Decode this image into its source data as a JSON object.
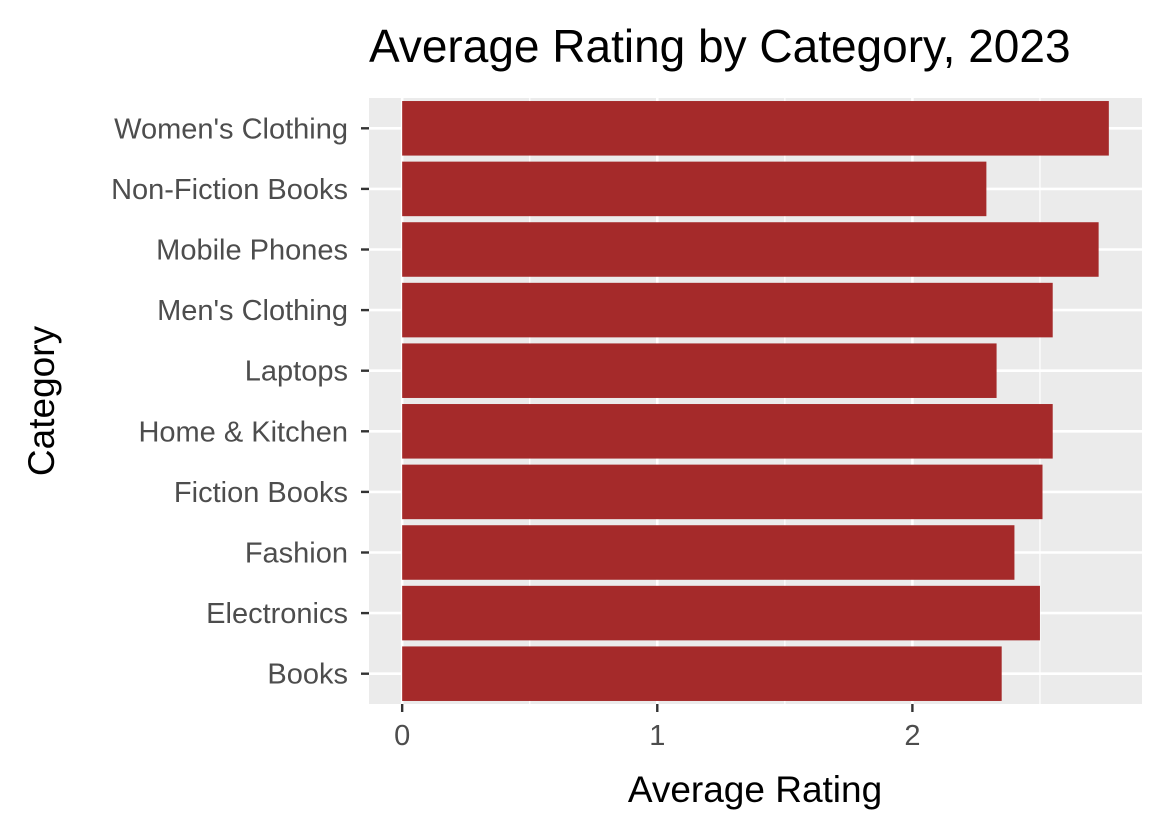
{
  "chart_data": {
    "type": "bar",
    "orientation": "horizontal",
    "title": "Average Rating by Category, 2023",
    "xlabel": "Average Rating",
    "ylabel": "Category",
    "categories": [
      "Books",
      "Electronics",
      "Fashion",
      "Fiction Books",
      "Home & Kitchen",
      "Laptops",
      "Men's Clothing",
      "Mobile Phones",
      "Non-Fiction Books",
      "Women's Clothing"
    ],
    "values": [
      2.35,
      2.5,
      2.4,
      2.51,
      2.55,
      2.33,
      2.55,
      2.73,
      2.29,
      2.77
    ],
    "xlim": [
      -0.13,
      2.9
    ],
    "xticks": [
      0,
      1,
      2
    ],
    "x_minor_gridlines": [
      0.5,
      1.5,
      2.5
    ],
    "grid": true,
    "bar_color": "#a52a2a",
    "panel_background": "#ebebeb",
    "gridline_color": "#ffffff"
  }
}
